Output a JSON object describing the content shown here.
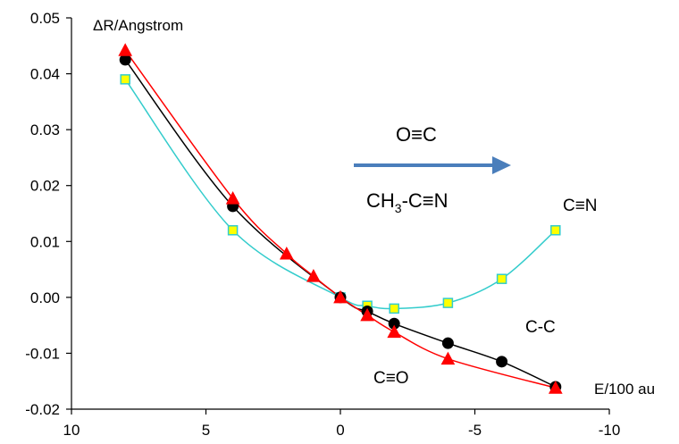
{
  "chart_data": {
    "type": "scatter",
    "title": "",
    "xlabel": "E/100 au",
    "ylabel": "ΔR/Angstrom",
    "xlim": [
      10,
      -10
    ],
    "ylim": [
      -0.02,
      0.05
    ],
    "x_ticks": [
      "10",
      "5",
      "0",
      "-5",
      "-10"
    ],
    "y_ticks": [
      "-0.02",
      "-0.01",
      "0.00",
      "0.01",
      "0.02",
      "0.03",
      "0.04",
      "0.05"
    ],
    "grid": false,
    "series": [
      {
        "name": "C≡N",
        "color": "#33cccc",
        "marker": "square",
        "marker_fill": "#ffff00",
        "x": [
          8,
          4,
          0,
          -1,
          -2,
          -4,
          -6,
          -8
        ],
        "y": [
          0.039,
          0.012,
          0.0,
          -0.0015,
          -0.002,
          -0.001,
          0.0033,
          0.012
        ]
      },
      {
        "name": "C-C",
        "color": "#000000",
        "marker": "circle",
        "marker_fill": "#000000",
        "x": [
          8,
          4,
          0,
          -1,
          -2,
          -4,
          -6,
          -8
        ],
        "y": [
          0.0425,
          0.0163,
          0.0,
          -0.0025,
          -0.0047,
          -0.0082,
          -0.0115,
          -0.016
        ]
      },
      {
        "name": "C≡O",
        "color": "#ff0000",
        "marker": "triangle",
        "marker_fill": "#ff0000",
        "x": [
          8,
          4,
          2,
          1,
          0,
          -1,
          -2,
          -4,
          -8
        ],
        "y": [
          0.0442,
          0.0177,
          0.0078,
          0.0038,
          0.0,
          -0.0032,
          -0.0062,
          -0.011,
          -0.0162
        ]
      }
    ],
    "annotations": {
      "arrow_top": "O≡C",
      "arrow_bottom_main": "CH",
      "arrow_bottom_sub": "3",
      "arrow_bottom_rest": "-C≡N",
      "arrow_color": "#4a7ebb"
    }
  }
}
